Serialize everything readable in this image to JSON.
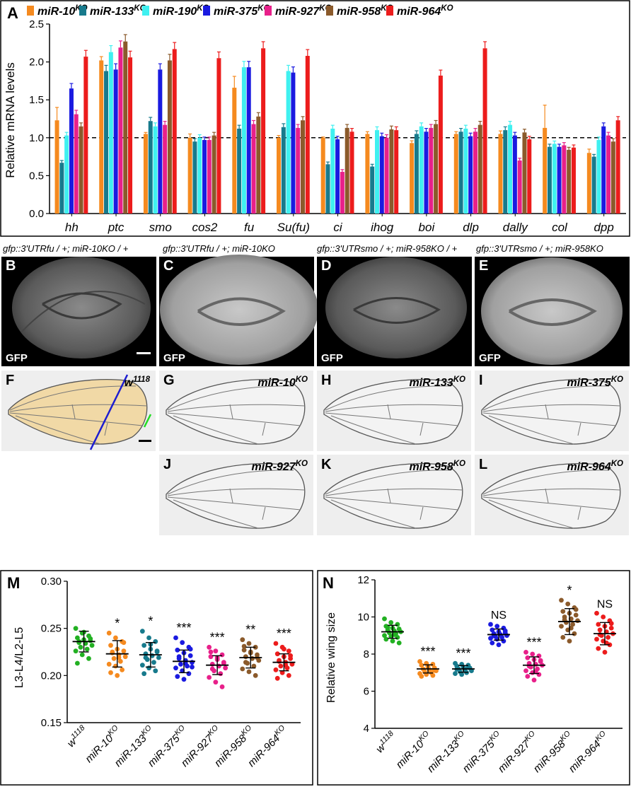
{
  "panels": {
    "a": "A",
    "b": "B",
    "c": "C",
    "d": "D",
    "e": "E",
    "f": "F",
    "g": "G",
    "h": "H",
    "i": "I",
    "j": "J",
    "k": "K",
    "l": "L",
    "m": "M",
    "n": "N"
  },
  "discs": {
    "label_b": "gfp::3'UTRfu / +; miR-10KO / +",
    "label_c": "gfp::3'UTRfu / +; miR-10KO",
    "label_d": "gfp::3'UTRsmo / +; miR-958KO / +",
    "label_e": "gfp::3'UTRsmo / +; miR-958KO",
    "gfp": "GFP"
  },
  "wings": [
    {
      "panel": "F",
      "label": "w1118"
    },
    {
      "panel": "G",
      "label": "miR-10KO"
    },
    {
      "panel": "H",
      "label": "miR-133KO"
    },
    {
      "panel": "I",
      "label": "miR-375KO"
    },
    {
      "panel": "J",
      "label": "miR-927KO"
    },
    {
      "panel": "K",
      "label": "miR-958KO"
    },
    {
      "panel": "L",
      "label": "miR-964KO"
    }
  ],
  "colors": {
    "miR-10KO": "#f58a1f",
    "miR-133KO": "#177a8c",
    "miR-190KO": "#3ff0f0",
    "miR-375KO": "#1a1ae0",
    "miR-927KO": "#e8208a",
    "miR-958KO": "#8b5a2b",
    "miR-964KO": "#ec1c1c",
    "w1118": "#22b022"
  },
  "chart_data": [
    {
      "type": "bar",
      "title": "",
      "ylabel": "Relative mRNA levels",
      "ylim": [
        0,
        2.5
      ],
      "yticks": [
        "0.0",
        "0.5",
        "1.0",
        "1.5",
        "2.0",
        "2.5"
      ],
      "reference_line": 1.0,
      "categories": [
        "hh",
        "ptc",
        "smo",
        "cos2",
        "fu",
        "Su(fu)",
        "ci",
        "ihog",
        "boi",
        "dlp",
        "dally",
        "col",
        "dpp"
      ],
      "series": [
        {
          "name": "miR-10",
          "sup": "KO",
          "values": [
            1.23,
            2.02,
            1.05,
            1.0,
            1.66,
            1.0,
            1.0,
            1.05,
            0.93,
            1.05,
            1.05,
            1.13,
            0.8
          ],
          "errors": [
            0.17,
            0.05,
            0.02,
            0.05,
            0.15,
            0.03,
            0.01,
            0.03,
            0.03,
            0.03,
            0.04,
            0.3,
            0.05
          ]
        },
        {
          "name": "miR-133",
          "sup": "KO",
          "values": [
            0.67,
            1.88,
            1.22,
            0.95,
            1.12,
            1.14,
            0.65,
            0.62,
            1.05,
            1.08,
            1.1,
            0.88,
            0.75
          ]
        },
        {
          "name": "miR-190",
          "sup": "KO",
          "values": [
            1.03,
            2.13,
            1.15,
            1.0,
            1.93,
            1.88,
            1.12,
            1.1,
            1.15,
            1.12,
            1.17,
            0.92,
            0.97
          ]
        },
        {
          "name": "miR-375",
          "sup": "KO",
          "values": [
            1.65,
            1.9,
            1.9,
            0.97,
            1.93,
            1.86,
            0.98,
            1.02,
            1.08,
            1.02,
            1.03,
            0.88,
            1.15
          ]
        },
        {
          "name": "miR-927",
          "sup": "KO",
          "values": [
            1.31,
            2.19,
            1.17,
            0.97,
            1.18,
            1.13,
            0.55,
            1.0,
            1.13,
            1.08,
            0.7,
            0.9,
            1.03
          ]
        },
        {
          "name": "miR-958",
          "sup": "KO",
          "values": [
            1.15,
            2.27,
            2.02,
            1.03,
            1.28,
            1.23,
            1.13,
            1.11,
            1.18,
            1.17,
            1.07,
            0.84,
            0.95
          ]
        },
        {
          "name": "miR-964",
          "sup": "KO",
          "values": [
            2.07,
            2.06,
            2.17,
            2.05,
            2.18,
            2.08,
            1.08,
            1.1,
            1.82,
            2.18,
            0.98,
            0.87,
            1.23
          ]
        }
      ]
    },
    {
      "type": "scatter",
      "ylabel": "L3-L4/L2-L5",
      "ylim": [
        0.15,
        0.3
      ],
      "yticks": [
        "0.15",
        "0.20",
        "0.25",
        "0.30"
      ],
      "groups": [
        {
          "name": "w",
          "sup": "1118",
          "mean": 0.236,
          "sd": 0.011,
          "sig": "",
          "points": [
            0.25,
            0.245,
            0.242,
            0.24,
            0.238,
            0.237,
            0.235,
            0.234,
            0.232,
            0.23,
            0.228,
            0.226,
            0.222,
            0.218,
            0.213,
            0.246,
            0.239,
            0.236
          ]
        },
        {
          "name": "miR-10",
          "sup": "KO",
          "mean": 0.223,
          "sd": 0.014,
          "sig": "*",
          "points": [
            0.245,
            0.24,
            0.236,
            0.232,
            0.228,
            0.226,
            0.224,
            0.222,
            0.22,
            0.218,
            0.215,
            0.212,
            0.21,
            0.206,
            0.203,
            0.2,
            0.235,
            0.225,
            0.219
          ]
        },
        {
          "name": "miR-133",
          "sup": "KO",
          "mean": 0.222,
          "sd": 0.013,
          "sig": "*",
          "points": [
            0.247,
            0.24,
            0.236,
            0.232,
            0.228,
            0.225,
            0.223,
            0.221,
            0.219,
            0.217,
            0.214,
            0.211,
            0.208,
            0.205,
            0.202,
            0.233,
            0.226,
            0.219
          ]
        },
        {
          "name": "miR-375",
          "sup": "KO",
          "mean": 0.215,
          "sd": 0.012,
          "sig": "***",
          "points": [
            0.24,
            0.235,
            0.23,
            0.227,
            0.224,
            0.221,
            0.218,
            0.216,
            0.214,
            0.212,
            0.21,
            0.208,
            0.205,
            0.202,
            0.199,
            0.196,
            0.228,
            0.22,
            0.213,
            0.209
          ]
        },
        {
          "name": "miR-927",
          "sup": "KO",
          "mean": 0.211,
          "sd": 0.01,
          "sig": "***",
          "points": [
            0.23,
            0.226,
            0.222,
            0.22,
            0.217,
            0.214,
            0.212,
            0.21,
            0.208,
            0.205,
            0.202,
            0.198,
            0.193,
            0.188,
            0.225,
            0.219,
            0.213,
            0.207
          ]
        },
        {
          "name": "miR-958",
          "sup": "KO",
          "mean": 0.219,
          "sd": 0.011,
          "sig": "**",
          "points": [
            0.238,
            0.234,
            0.23,
            0.227,
            0.224,
            0.222,
            0.22,
            0.218,
            0.216,
            0.213,
            0.21,
            0.207,
            0.204,
            0.2,
            0.231,
            0.225,
            0.219,
            0.214
          ]
        },
        {
          "name": "miR-964",
          "sup": "KO",
          "mean": 0.214,
          "sd": 0.009,
          "sig": "***",
          "points": [
            0.234,
            0.23,
            0.226,
            0.223,
            0.22,
            0.218,
            0.216,
            0.214,
            0.212,
            0.21,
            0.208,
            0.206,
            0.203,
            0.2,
            0.197,
            0.228,
            0.221,
            0.215,
            0.211
          ]
        }
      ]
    },
    {
      "type": "scatter",
      "ylabel": "Relative wing size",
      "ylim": [
        4,
        12
      ],
      "yticks": [
        "4",
        "6",
        "8",
        "10",
        "12"
      ],
      "groups": [
        {
          "name": "w",
          "sup": "1118",
          "mean": 9.2,
          "sd": 0.35,
          "sig": "",
          "points": [
            9.9,
            9.7,
            9.6,
            9.5,
            9.4,
            9.35,
            9.3,
            9.25,
            9.2,
            9.15,
            9.1,
            9.0,
            8.95,
            8.9,
            8.8,
            8.7,
            8.6,
            9.45,
            9.05
          ]
        },
        {
          "name": "miR-10",
          "sup": "KO",
          "mean": 7.2,
          "sd": 0.22,
          "sig": "***",
          "points": [
            7.6,
            7.5,
            7.45,
            7.4,
            7.3,
            7.25,
            7.2,
            7.15,
            7.1,
            7.05,
            7.0,
            6.95,
            6.9,
            6.85,
            6.8,
            7.35,
            7.12
          ]
        },
        {
          "name": "miR-133",
          "sup": "KO",
          "mean": 7.2,
          "sd": 0.18,
          "sig": "***",
          "points": [
            7.5,
            7.45,
            7.4,
            7.35,
            7.3,
            7.25,
            7.2,
            7.15,
            7.1,
            7.05,
            7.0,
            6.95,
            6.9,
            7.28,
            7.18
          ]
        },
        {
          "name": "miR-375",
          "sup": "KO",
          "mean": 9.05,
          "sd": 0.3,
          "sig": "NS",
          "points": [
            9.6,
            9.5,
            9.4,
            9.3,
            9.2,
            9.15,
            9.1,
            9.05,
            9.0,
            8.95,
            8.9,
            8.85,
            8.8,
            8.7,
            8.6,
            8.5,
            9.25,
            8.98
          ]
        },
        {
          "name": "miR-927",
          "sup": "KO",
          "mean": 7.4,
          "sd": 0.45,
          "sig": "***",
          "points": [
            8.1,
            8.0,
            7.9,
            7.8,
            7.7,
            7.6,
            7.5,
            7.45,
            7.4,
            7.3,
            7.2,
            7.1,
            7.0,
            6.9,
            6.8,
            6.6,
            7.65,
            7.35,
            7.05
          ]
        },
        {
          "name": "miR-958",
          "sup": "KO",
          "mean": 9.75,
          "sd": 0.7,
          "sig": "*",
          "points": [
            10.9,
            10.7,
            10.5,
            10.3,
            10.2,
            10.1,
            10.0,
            9.9,
            9.8,
            9.7,
            9.6,
            9.5,
            9.3,
            9.1,
            8.9,
            8.7,
            10.4,
            9.85,
            9.4
          ]
        },
        {
          "name": "miR-964",
          "sup": "KO",
          "mean": 9.1,
          "sd": 0.6,
          "sig": "NS",
          "points": [
            10.2,
            10.0,
            9.8,
            9.6,
            9.5,
            9.4,
            9.3,
            9.2,
            9.1,
            9.0,
            8.9,
            8.8,
            8.7,
            8.5,
            8.3,
            8.1,
            9.65,
            9.05,
            8.6
          ]
        }
      ]
    }
  ]
}
